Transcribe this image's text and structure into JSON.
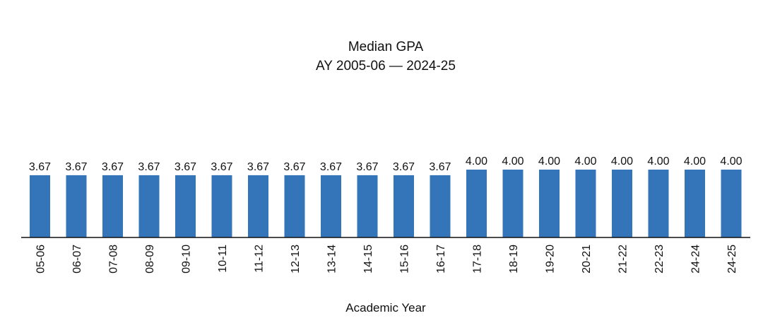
{
  "chart_data": {
    "type": "bar",
    "title": "Median GPA",
    "subtitle": "AY 2005-06 — 2024-25",
    "xlabel": "Academic Year",
    "ylabel": "",
    "ylim": [
      0,
      4.0
    ],
    "grid": false,
    "bar_color": "#3474B9",
    "categories": [
      "05-06",
      "06-07",
      "07-08",
      "08-09",
      "09-10",
      "10-11",
      "11-12",
      "12-13",
      "13-14",
      "14-15",
      "15-16",
      "16-17",
      "17-18",
      "18-19",
      "19-20",
      "20-21",
      "21-22",
      "22-23",
      "24-24",
      "24-25"
    ],
    "values": [
      3.67,
      3.67,
      3.67,
      3.67,
      3.67,
      3.67,
      3.67,
      3.67,
      3.67,
      3.67,
      3.67,
      3.67,
      4.0,
      4.0,
      4.0,
      4.0,
      4.0,
      4.0,
      4.0,
      4.0
    ],
    "data_labels": [
      "3.67",
      "3.67",
      "3.67",
      "3.67",
      "3.67",
      "3.67",
      "3.67",
      "3.67",
      "3.67",
      "3.67",
      "3.67",
      "3.67",
      "4.00",
      "4.00",
      "4.00",
      "4.00",
      "4.00",
      "4.00",
      "4.00",
      "4.00"
    ]
  }
}
